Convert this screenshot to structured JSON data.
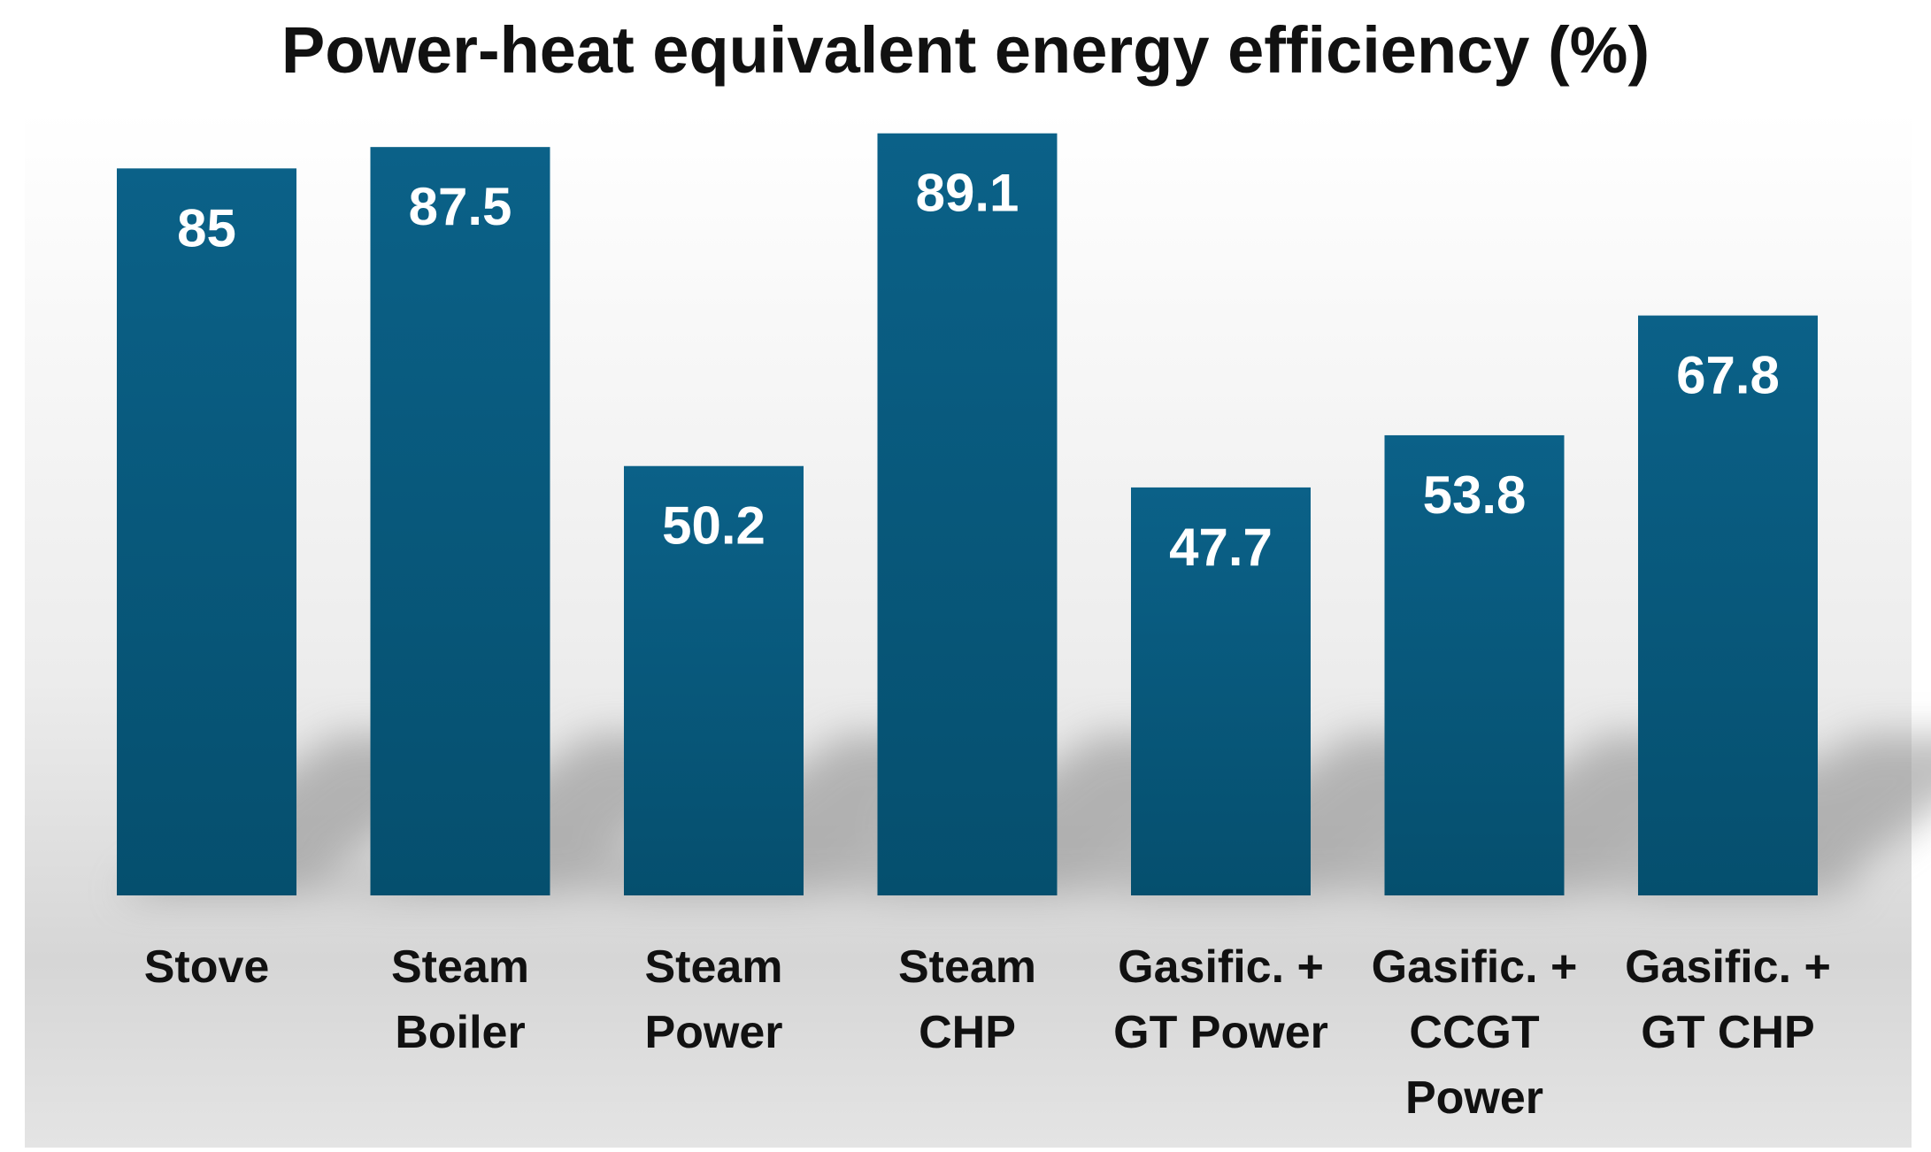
{
  "chart_data": {
    "type": "bar",
    "title": "Power-heat equivalent energy efficiency (%)",
    "xlabel": "",
    "ylabel": "",
    "ylim": [
      0,
      100
    ],
    "grid": false,
    "legend": "none",
    "categories": [
      [
        "Stove"
      ],
      [
        "Steam",
        "Boiler"
      ],
      [
        "Steam",
        "Power"
      ],
      [
        "Steam",
        "CHP"
      ],
      [
        "Gasific. +",
        "GT Power"
      ],
      [
        "Gasific. +",
        "CCGT",
        "Power"
      ],
      [
        "Gasific. +",
        "GT CHP"
      ]
    ],
    "values": [
      85,
      87.5,
      50.2,
      89.1,
      47.7,
      53.8,
      67.8
    ],
    "data_labels": [
      "85",
      "87.5",
      "50.2",
      "89.1",
      "47.7",
      "53.8",
      "67.8"
    ],
    "colors": {
      "bar_top": "#0b6188",
      "bar_bottom": "#054f6e",
      "background_top": "#ffffff",
      "background_bottom": "#dcdcdc",
      "text": "#111111",
      "label": "#ffffff"
    }
  }
}
